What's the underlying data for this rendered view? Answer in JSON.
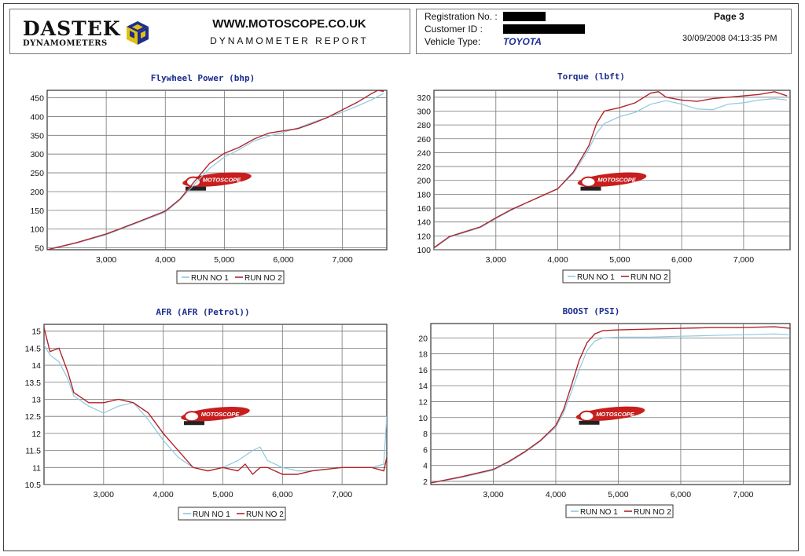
{
  "header": {
    "brand_name": "DASTEK",
    "brand_sub": "DYNAMOMETERS",
    "website": "WWW.MOTOSCOPE.CO.UK",
    "report_title": "DYNAMOMETER REPORT",
    "registration_label": "Registration No. :",
    "customer_label": "Customer ID :",
    "vehicle_label": "Vehicle Type:",
    "vehicle_value": "TOYOTA",
    "page": "Page 3",
    "datetime": "30/09/2008 04:13:35 PM"
  },
  "watermark_text": "MOTOSCOPE",
  "colors": {
    "run1": "#8ec8e0",
    "run2": "#b0242a",
    "title": "#1a2c8c",
    "grid": "#777777",
    "plot_border": "#333333"
  },
  "chart_data": [
    {
      "id": "power",
      "type": "line",
      "title": "Flywheel Power (bhp)",
      "xlim": [
        2000,
        7750
      ],
      "ylim": [
        45,
        470
      ],
      "xticks": [
        3000,
        4000,
        5000,
        6000,
        7000
      ],
      "xtick_labels": [
        "3,000",
        "4,000",
        "5,000",
        "6,000",
        "7,000"
      ],
      "yticks": [
        50,
        100,
        150,
        200,
        250,
        300,
        350,
        400,
        450
      ],
      "ytick_labels": [
        "50",
        "100",
        "150",
        "200",
        "250",
        "300",
        "350",
        "400",
        "450"
      ],
      "legend": [
        "RUN NO 1",
        "RUN NO 2"
      ],
      "series": [
        {
          "name": "RUN NO 1",
          "x": [
            2000,
            2500,
            3000,
            3500,
            4000,
            4250,
            4500,
            4750,
            5000,
            5250,
            5500,
            5750,
            6000,
            6250,
            6500,
            6750,
            7000,
            7250,
            7500,
            7700
          ],
          "y": [
            45,
            63,
            85,
            115,
            145,
            178,
            220,
            262,
            292,
            312,
            335,
            348,
            358,
            370,
            385,
            398,
            412,
            428,
            445,
            462
          ]
        },
        {
          "name": "RUN NO 2",
          "x": [
            2000,
            2500,
            3000,
            3500,
            4000,
            4250,
            4500,
            4750,
            5000,
            5250,
            5500,
            5750,
            6000,
            6250,
            6500,
            6750,
            7000,
            7250,
            7500,
            7600,
            7700
          ],
          "y": [
            45,
            64,
            87,
            117,
            148,
            180,
            228,
            275,
            302,
            318,
            340,
            356,
            362,
            368,
            382,
            398,
            418,
            438,
            462,
            470,
            467
          ]
        }
      ]
    },
    {
      "id": "torque",
      "type": "line",
      "title": "Torque (lbft)",
      "xlim": [
        2000,
        7750
      ],
      "ylim": [
        100,
        330
      ],
      "xticks": [
        3000,
        4000,
        5000,
        6000,
        7000
      ],
      "xtick_labels": [
        "3,000",
        "4,000",
        "5,000",
        "6,000",
        "7,000"
      ],
      "yticks": [
        100,
        120,
        140,
        160,
        180,
        200,
        220,
        240,
        260,
        280,
        300,
        320
      ],
      "ytick_labels": [
        "100",
        "120",
        "140",
        "160",
        "180",
        "200",
        "220",
        "240",
        "260",
        "280",
        "300",
        "320"
      ],
      "legend": [
        "RUN NO 1",
        "RUN NO 2"
      ],
      "series": [
        {
          "name": "RUN NO 1",
          "x": [
            2000,
            2250,
            2500,
            2750,
            3000,
            3250,
            3500,
            3750,
            4000,
            4250,
            4500,
            4625,
            4750,
            5000,
            5250,
            5500,
            5750,
            6000,
            6250,
            6500,
            6750,
            7000,
            7250,
            7500,
            7700
          ],
          "y": [
            102,
            118,
            125,
            132,
            145,
            157,
            168,
            178,
            188,
            210,
            245,
            268,
            282,
            292,
            298,
            310,
            315,
            310,
            303,
            302,
            310,
            312,
            316,
            318,
            316
          ]
        },
        {
          "name": "RUN NO 2",
          "x": [
            2000,
            2250,
            2500,
            2750,
            3000,
            3250,
            3500,
            3750,
            4000,
            4250,
            4500,
            4625,
            4750,
            5000,
            5250,
            5500,
            5625,
            5750,
            6000,
            6250,
            6500,
            6750,
            7000,
            7250,
            7500,
            7700
          ],
          "y": [
            103,
            119,
            126,
            133,
            146,
            158,
            168,
            178,
            188,
            212,
            250,
            282,
            300,
            305,
            312,
            326,
            328,
            320,
            316,
            314,
            318,
            320,
            322,
            324,
            328,
            322
          ]
        }
      ]
    },
    {
      "id": "afr",
      "type": "line",
      "title": "AFR (AFR (Petrol))",
      "xlim": [
        2000,
        7750
      ],
      "ylim": [
        10.5,
        15.2
      ],
      "xticks": [
        3000,
        4000,
        5000,
        6000,
        7000
      ],
      "xtick_labels": [
        "3,000",
        "4,000",
        "5,000",
        "6,000",
        "7,000"
      ],
      "yticks": [
        10.5,
        11,
        11.5,
        12,
        12.5,
        13,
        13.5,
        14,
        14.5,
        15
      ],
      "ytick_labels": [
        "10.5",
        "11",
        "11.5",
        "12",
        "12.5",
        "13",
        "13.5",
        "14",
        "14.5",
        "15"
      ],
      "legend": [
        "RUN NO 1",
        "RUN NO 2"
      ],
      "series": [
        {
          "name": "RUN NO 1",
          "x": [
            2000,
            2100,
            2250,
            2400,
            2500,
            2750,
            3000,
            3250,
            3500,
            3750,
            4000,
            4250,
            4500,
            4750,
            5000,
            5250,
            5500,
            5625,
            5750,
            6000,
            6250,
            6500,
            7000,
            7250,
            7500,
            7700,
            7750
          ],
          "y": [
            14.6,
            14.3,
            14.1,
            13.6,
            13.1,
            12.8,
            12.6,
            12.8,
            12.9,
            12.4,
            11.8,
            11.3,
            11.0,
            10.9,
            11.0,
            11.2,
            11.5,
            11.6,
            11.2,
            11.0,
            10.9,
            10.9,
            11.0,
            11.0,
            11.0,
            11.1,
            12.5
          ]
        },
        {
          "name": "RUN NO 2",
          "x": [
            2000,
            2100,
            2250,
            2400,
            2500,
            2750,
            3000,
            3250,
            3500,
            3750,
            4000,
            4250,
            4500,
            4750,
            5000,
            5250,
            5375,
            5500,
            5625,
            5750,
            6000,
            6250,
            6500,
            7000,
            7250,
            7500,
            7700,
            7750
          ],
          "y": [
            15.1,
            14.4,
            14.5,
            13.8,
            13.2,
            12.9,
            12.9,
            13.0,
            12.9,
            12.6,
            12.0,
            11.5,
            11.0,
            10.9,
            11.0,
            10.9,
            11.1,
            10.8,
            11.0,
            11.0,
            10.8,
            10.8,
            10.9,
            11.0,
            11.0,
            11.0,
            10.9,
            11.3
          ]
        }
      ]
    },
    {
      "id": "boost",
      "type": "line",
      "title": "BOOST (PSI)",
      "xlim": [
        2000,
        7750
      ],
      "ylim": [
        1.6,
        21.8
      ],
      "xticks": [
        3000,
        4000,
        5000,
        6000,
        7000
      ],
      "xtick_labels": [
        "3,000",
        "4,000",
        "5,000",
        "6,000",
        "7,000"
      ],
      "yticks": [
        2,
        4,
        6,
        8,
        10,
        12,
        14,
        16,
        18,
        20
      ],
      "ytick_labels": [
        "2",
        "4",
        "6",
        "8",
        "10",
        "12",
        "14",
        "16",
        "18",
        "20"
      ],
      "legend": [
        "RUN NO 1",
        "RUN NO 2"
      ],
      "series": [
        {
          "name": "RUN NO 1",
          "x": [
            2000,
            2500,
            3000,
            3250,
            3500,
            3750,
            4000,
            4125,
            4250,
            4375,
            4500,
            4625,
            4750,
            5000,
            5500,
            6000,
            6500,
            7000,
            7500,
            7750
          ],
          "y": [
            1.8,
            2.5,
            3.4,
            4.4,
            5.6,
            7.0,
            8.8,
            10.6,
            13.2,
            16.0,
            18.4,
            19.6,
            20.0,
            20.1,
            20.1,
            20.2,
            20.3,
            20.4,
            20.5,
            20.4
          ]
        },
        {
          "name": "RUN NO 2",
          "x": [
            2000,
            2500,
            3000,
            3250,
            3500,
            3750,
            4000,
            4125,
            4250,
            4375,
            4500,
            4625,
            4750,
            5000,
            5500,
            6000,
            6500,
            7000,
            7500,
            7750
          ],
          "y": [
            1.8,
            2.6,
            3.5,
            4.5,
            5.7,
            7.1,
            9.0,
            11.0,
            14.0,
            17.2,
            19.4,
            20.5,
            20.9,
            21.0,
            21.1,
            21.2,
            21.3,
            21.3,
            21.4,
            21.2
          ]
        }
      ]
    }
  ]
}
